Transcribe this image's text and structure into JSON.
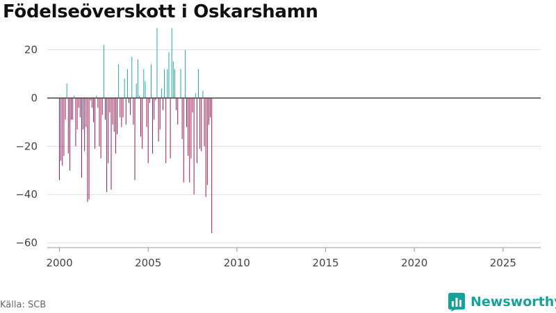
{
  "title": "Födelseöverskott i Oskarshamn",
  "source": "Källa: SCB",
  "brand": {
    "name": "Newsworthy",
    "logo_icon": "newsworthy-logo-icon"
  },
  "colors": {
    "positive": "#14a29a",
    "negative": "#970545",
    "grid": "#dddddd",
    "zero_line": "#333333",
    "text": "#444444"
  },
  "chart_data": {
    "type": "bar",
    "title": "Födelseöverskott i Oskarshamn",
    "xlabel": "",
    "ylabel": "",
    "ylim": [
      -62,
      32
    ],
    "xlim": [
      1999.0,
      2027.2
    ],
    "yticks": [
      20,
      0,
      -20,
      -40,
      -60
    ],
    "ytick_labels": [
      "20",
      "0",
      "−20",
      "−40",
      "−60"
    ],
    "xticks": [
      2000,
      2005,
      2010,
      2015,
      2020,
      2025
    ],
    "xtick_labels": [
      "2000",
      "2005",
      "2010",
      "2015",
      "2020",
      "2025"
    ],
    "grid": true,
    "bar_interval": "month",
    "start_year": 2000,
    "values": [
      -34,
      -26,
      -28,
      -24,
      -9,
      6,
      -23,
      -30,
      -9,
      -9,
      1,
      -20,
      -13,
      -4,
      -8,
      -33,
      -13,
      -22,
      -12,
      -43,
      -42,
      -1,
      -4,
      -10,
      -21,
      1,
      -4,
      -20,
      -25,
      -7,
      22,
      -9,
      -39,
      -27,
      -6,
      -38,
      -11,
      -14,
      -23,
      -15,
      14,
      -8,
      -12,
      -8,
      8,
      -11,
      12,
      -2,
      -7,
      17,
      -11,
      -34,
      6,
      16,
      1,
      -16,
      -21,
      12,
      7,
      -12,
      -27,
      -2,
      14,
      -23,
      -9,
      -1,
      29,
      -18,
      -13,
      4,
      -5,
      12,
      -27,
      12,
      19,
      -25,
      29,
      15,
      12,
      -5,
      -11,
      0,
      12,
      -17,
      -35,
      20,
      -12,
      -24,
      -35,
      -25,
      -6,
      -40,
      2,
      -27,
      12,
      -21,
      -22,
      3,
      -20,
      -41,
      -36,
      -11,
      -8,
      -56
    ]
  }
}
